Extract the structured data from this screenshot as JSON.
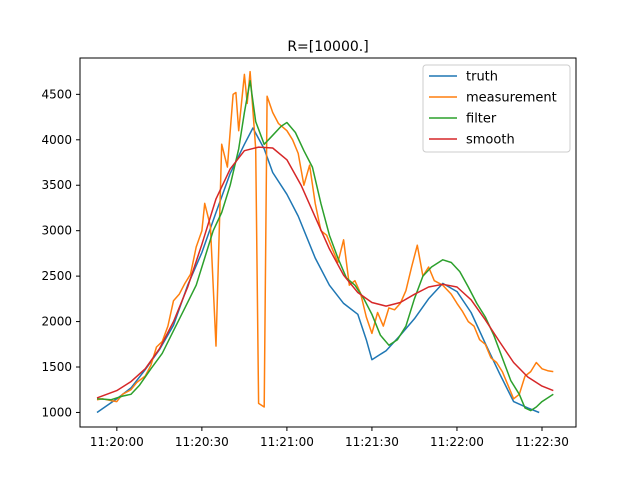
{
  "chart_data": {
    "type": "line",
    "title": "R=[10000.]",
    "xlabel": "",
    "ylabel": "",
    "xlim": [
      "11:19:47",
      "11:22:42"
    ],
    "ylim": [
      840,
      4900
    ],
    "grid": false,
    "legend_position": "top-right",
    "x_ticks": [
      "11:20:00",
      "11:20:30",
      "11:21:00",
      "11:21:30",
      "11:22:00",
      "11:22:30"
    ],
    "y_ticks": [
      1000,
      1500,
      2000,
      2500,
      3000,
      3500,
      4000,
      4500
    ],
    "series": [
      {
        "name": "truth",
        "color": "#1f77b4",
        "points": [
          [
            "11:19:53",
            1000
          ],
          [
            "11:20:00",
            1150
          ],
          [
            "11:20:05",
            1270
          ],
          [
            "11:20:10",
            1470
          ],
          [
            "11:20:15",
            1690
          ],
          [
            "11:20:20",
            1960
          ],
          [
            "11:20:25",
            2400
          ],
          [
            "11:20:30",
            2760
          ],
          [
            "11:20:35",
            3200
          ],
          [
            "11:20:40",
            3630
          ],
          [
            "11:20:45",
            3950
          ],
          [
            "11:20:48",
            4130
          ],
          [
            "11:20:52",
            3900
          ],
          [
            "11:20:55",
            3640
          ],
          [
            "11:21:00",
            3400
          ],
          [
            "11:21:04",
            3160
          ],
          [
            "11:21:10",
            2700
          ],
          [
            "11:21:15",
            2400
          ],
          [
            "11:21:20",
            2200
          ],
          [
            "11:21:25",
            2080
          ],
          [
            "11:21:28",
            1800
          ],
          [
            "11:21:30",
            1580
          ],
          [
            "11:21:35",
            1680
          ],
          [
            "11:21:40",
            1850
          ],
          [
            "11:21:45",
            2030
          ],
          [
            "11:21:50",
            2250
          ],
          [
            "11:21:55",
            2420
          ],
          [
            "11:22:00",
            2330
          ],
          [
            "11:22:05",
            2100
          ],
          [
            "11:22:10",
            1760
          ],
          [
            "11:22:15",
            1430
          ],
          [
            "11:22:20",
            1120
          ],
          [
            "11:22:25",
            1050
          ],
          [
            "11:22:29",
            1000
          ]
        ]
      },
      {
        "name": "measurement",
        "color": "#ff7f0e",
        "points": [
          [
            "11:19:53",
            1140
          ],
          [
            "11:19:55",
            1150
          ],
          [
            "11:19:58",
            1130
          ],
          [
            "11:20:00",
            1120
          ],
          [
            "11:20:02",
            1200
          ],
          [
            "11:20:05",
            1250
          ],
          [
            "11:20:07",
            1330
          ],
          [
            "11:20:10",
            1400
          ],
          [
            "11:20:12",
            1520
          ],
          [
            "11:20:14",
            1720
          ],
          [
            "11:20:16",
            1780
          ],
          [
            "11:20:18",
            1950
          ],
          [
            "11:20:20",
            2230
          ],
          [
            "11:20:22",
            2300
          ],
          [
            "11:20:24",
            2420
          ],
          [
            "11:20:26",
            2520
          ],
          [
            "11:20:28",
            2820
          ],
          [
            "11:20:30",
            3000
          ],
          [
            "11:20:31",
            3300
          ],
          [
            "11:20:33",
            3050
          ],
          [
            "11:20:35",
            1730
          ],
          [
            "11:20:37",
            3950
          ],
          [
            "11:20:39",
            3700
          ],
          [
            "11:20:41",
            4500
          ],
          [
            "11:20:42",
            4520
          ],
          [
            "11:20:43",
            4100
          ],
          [
            "11:20:45",
            4720
          ],
          [
            "11:20:46",
            4400
          ],
          [
            "11:20:47",
            4750
          ],
          [
            "11:20:49",
            3900
          ],
          [
            "11:20:50",
            1100
          ],
          [
            "11:20:52",
            1060
          ],
          [
            "11:20:53",
            4480
          ],
          [
            "11:20:55",
            4300
          ],
          [
            "11:20:57",
            4180
          ],
          [
            "11:21:00",
            4100
          ],
          [
            "11:21:02",
            4000
          ],
          [
            "11:21:04",
            3850
          ],
          [
            "11:21:06",
            3500
          ],
          [
            "11:21:08",
            3720
          ],
          [
            "11:21:10",
            3300
          ],
          [
            "11:21:12",
            3000
          ],
          [
            "11:21:14",
            2950
          ],
          [
            "11:21:16",
            2800
          ],
          [
            "11:21:18",
            2650
          ],
          [
            "11:21:20",
            2900
          ],
          [
            "11:21:22",
            2400
          ],
          [
            "11:21:24",
            2450
          ],
          [
            "11:21:26",
            2310
          ],
          [
            "11:21:28",
            2050
          ],
          [
            "11:21:30",
            1870
          ],
          [
            "11:21:32",
            2100
          ],
          [
            "11:21:34",
            1950
          ],
          [
            "11:21:36",
            2150
          ],
          [
            "11:21:38",
            2130
          ],
          [
            "11:21:40",
            2200
          ],
          [
            "11:21:42",
            2340
          ],
          [
            "11:21:44",
            2600
          ],
          [
            "11:21:46",
            2840
          ],
          [
            "11:21:48",
            2500
          ],
          [
            "11:21:50",
            2600
          ],
          [
            "11:21:52",
            2450
          ],
          [
            "11:21:55",
            2400
          ],
          [
            "11:21:58",
            2300
          ],
          [
            "11:22:00",
            2200
          ],
          [
            "11:22:02",
            2110
          ],
          [
            "11:22:04",
            2000
          ],
          [
            "11:22:06",
            1950
          ],
          [
            "11:22:08",
            1800
          ],
          [
            "11:22:10",
            1750
          ],
          [
            "11:22:12",
            1600
          ],
          [
            "11:22:14",
            1550
          ],
          [
            "11:22:16",
            1450
          ],
          [
            "11:22:18",
            1300
          ],
          [
            "11:22:20",
            1150
          ],
          [
            "11:22:22",
            1200
          ],
          [
            "11:22:24",
            1400
          ],
          [
            "11:22:26",
            1450
          ],
          [
            "11:22:28",
            1550
          ],
          [
            "11:22:30",
            1480
          ],
          [
            "11:22:32",
            1460
          ],
          [
            "11:22:34",
            1450
          ]
        ]
      },
      {
        "name": "filter",
        "color": "#2ca02c",
        "points": [
          [
            "11:19:53",
            1150
          ],
          [
            "11:19:58",
            1140
          ],
          [
            "11:20:02",
            1180
          ],
          [
            "11:20:05",
            1200
          ],
          [
            "11:20:08",
            1300
          ],
          [
            "11:20:12",
            1480
          ],
          [
            "11:20:16",
            1650
          ],
          [
            "11:20:20",
            1900
          ],
          [
            "11:20:24",
            2150
          ],
          [
            "11:20:28",
            2400
          ],
          [
            "11:20:31",
            2700
          ],
          [
            "11:20:34",
            3000
          ],
          [
            "11:20:37",
            3200
          ],
          [
            "11:20:40",
            3500
          ],
          [
            "11:20:43",
            3900
          ],
          [
            "11:20:45",
            4300
          ],
          [
            "11:20:47",
            4650
          ],
          [
            "11:20:49",
            4200
          ],
          [
            "11:20:52",
            3950
          ],
          [
            "11:20:55",
            4050
          ],
          [
            "11:20:58",
            4150
          ],
          [
            "11:21:00",
            4190
          ],
          [
            "11:21:03",
            4080
          ],
          [
            "11:21:06",
            3880
          ],
          [
            "11:21:09",
            3700
          ],
          [
            "11:21:12",
            3300
          ],
          [
            "11:21:15",
            2950
          ],
          [
            "11:21:18",
            2700
          ],
          [
            "11:21:21",
            2480
          ],
          [
            "11:21:24",
            2400
          ],
          [
            "11:21:27",
            2260
          ],
          [
            "11:21:30",
            2080
          ],
          [
            "11:21:33",
            1850
          ],
          [
            "11:21:36",
            1740
          ],
          [
            "11:21:39",
            1800
          ],
          [
            "11:21:42",
            1950
          ],
          [
            "11:21:45",
            2250
          ],
          [
            "11:21:48",
            2500
          ],
          [
            "11:21:51",
            2600
          ],
          [
            "11:21:55",
            2680
          ],
          [
            "11:21:58",
            2650
          ],
          [
            "11:22:01",
            2550
          ],
          [
            "11:22:04",
            2380
          ],
          [
            "11:22:07",
            2200
          ],
          [
            "11:22:10",
            2050
          ],
          [
            "11:22:13",
            1850
          ],
          [
            "11:22:16",
            1600
          ],
          [
            "11:22:19",
            1350
          ],
          [
            "11:22:22",
            1200
          ],
          [
            "11:22:24",
            1050
          ],
          [
            "11:22:26",
            1020
          ],
          [
            "11:22:28",
            1060
          ],
          [
            "11:22:30",
            1120
          ],
          [
            "11:22:34",
            1200
          ]
        ]
      },
      {
        "name": "smooth",
        "color": "#d62728",
        "points": [
          [
            "11:19:53",
            1160
          ],
          [
            "11:20:00",
            1240
          ],
          [
            "11:20:05",
            1340
          ],
          [
            "11:20:10",
            1480
          ],
          [
            "11:20:15",
            1700
          ],
          [
            "11:20:20",
            2000
          ],
          [
            "11:20:25",
            2380
          ],
          [
            "11:20:30",
            2850
          ],
          [
            "11:20:35",
            3350
          ],
          [
            "11:20:40",
            3680
          ],
          [
            "11:20:45",
            3880
          ],
          [
            "11:20:50",
            3920
          ],
          [
            "11:20:55",
            3910
          ],
          [
            "11:21:00",
            3780
          ],
          [
            "11:21:05",
            3500
          ],
          [
            "11:21:10",
            3150
          ],
          [
            "11:21:15",
            2800
          ],
          [
            "11:21:20",
            2510
          ],
          [
            "11:21:25",
            2320
          ],
          [
            "11:21:30",
            2210
          ],
          [
            "11:21:35",
            2170
          ],
          [
            "11:21:40",
            2210
          ],
          [
            "11:21:45",
            2300
          ],
          [
            "11:21:50",
            2380
          ],
          [
            "11:21:55",
            2410
          ],
          [
            "11:22:00",
            2380
          ],
          [
            "11:22:05",
            2240
          ],
          [
            "11:22:10",
            2020
          ],
          [
            "11:22:15",
            1780
          ],
          [
            "11:22:20",
            1550
          ],
          [
            "11:22:25",
            1390
          ],
          [
            "11:22:30",
            1290
          ],
          [
            "11:22:34",
            1240
          ]
        ]
      }
    ]
  }
}
